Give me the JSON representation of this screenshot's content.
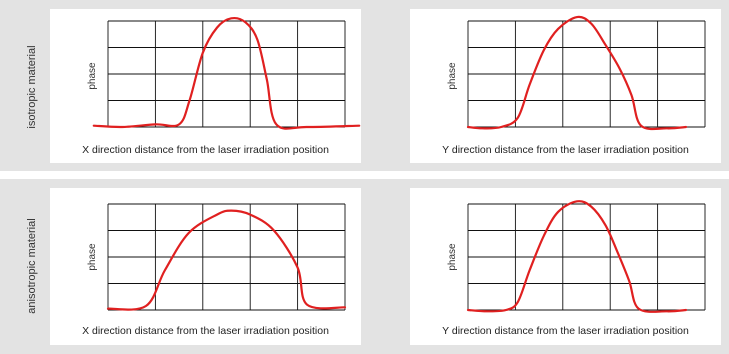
{
  "row_labels": [
    "isotropic material",
    "anisotropic material"
  ],
  "chart_data": [
    {
      "type": "line",
      "row": "isotropic material",
      "xlabel": "X direction distance from  the laser irradiation position",
      "ylabel": "phase",
      "grid": true,
      "xlim": [
        0,
        5
      ],
      "ylim": [
        0,
        4
      ],
      "series": [
        {
          "color": "#e02020",
          "x": [
            -0.3,
            0.3,
            1.0,
            1.5,
            1.72,
            2.0,
            2.3,
            2.6,
            2.9,
            3.15,
            3.35,
            3.55,
            4.2,
            5.3
          ],
          "y": [
            0.05,
            0.0,
            0.1,
            0.1,
            1.0,
            2.8,
            3.75,
            4.1,
            3.95,
            3.3,
            1.8,
            0.1,
            0.0,
            0.05
          ]
        }
      ]
    },
    {
      "type": "line",
      "row": "isotropic material",
      "xlabel": "Y direction distance from  the laser irradiation position",
      "ylabel": "phase",
      "grid": true,
      "xlim": [
        0,
        5
      ],
      "ylim": [
        0,
        4
      ],
      "series": [
        {
          "color": "#e02020",
          "x": [
            0.0,
            0.3,
            0.7,
            1.05,
            1.3,
            1.6,
            1.9,
            2.3,
            2.6,
            2.9,
            3.2,
            3.45,
            3.65,
            4.2,
            4.6
          ],
          "y": [
            0.0,
            -0.05,
            0.0,
            0.35,
            1.6,
            2.9,
            3.7,
            4.15,
            3.9,
            3.1,
            2.2,
            1.2,
            0.05,
            -0.05,
            0.0
          ]
        }
      ]
    },
    {
      "type": "line",
      "row": "anisotropic material",
      "xlabel": "X direction distance from  the laser irradiation position",
      "ylabel": "phase",
      "grid": true,
      "xlim": [
        0,
        5
      ],
      "ylim": [
        0,
        4
      ],
      "series": [
        {
          "color": "#e02020",
          "x": [
            0.0,
            0.8,
            1.2,
            1.7,
            2.3,
            2.6,
            3.0,
            3.5,
            4.0,
            4.2,
            5.0
          ],
          "y": [
            0.05,
            0.15,
            1.5,
            2.9,
            3.6,
            3.75,
            3.6,
            3.0,
            1.6,
            0.2,
            0.1
          ]
        }
      ]
    },
    {
      "type": "line",
      "row": "anisotropic material",
      "xlabel": "Y direction distance from  the laser irradiation position",
      "ylabel": "phase",
      "grid": true,
      "xlim": [
        0,
        5
      ],
      "ylim": [
        0,
        4
      ],
      "series": [
        {
          "color": "#e02020",
          "x": [
            0.0,
            0.4,
            0.8,
            1.05,
            1.3,
            1.6,
            1.9,
            2.3,
            2.6,
            2.9,
            3.15,
            3.4,
            3.6,
            4.2,
            4.6
          ],
          "y": [
            0.0,
            -0.05,
            0.0,
            0.3,
            1.5,
            2.8,
            3.7,
            4.1,
            3.9,
            3.2,
            2.2,
            1.1,
            0.05,
            -0.05,
            0.0
          ]
        }
      ]
    }
  ]
}
